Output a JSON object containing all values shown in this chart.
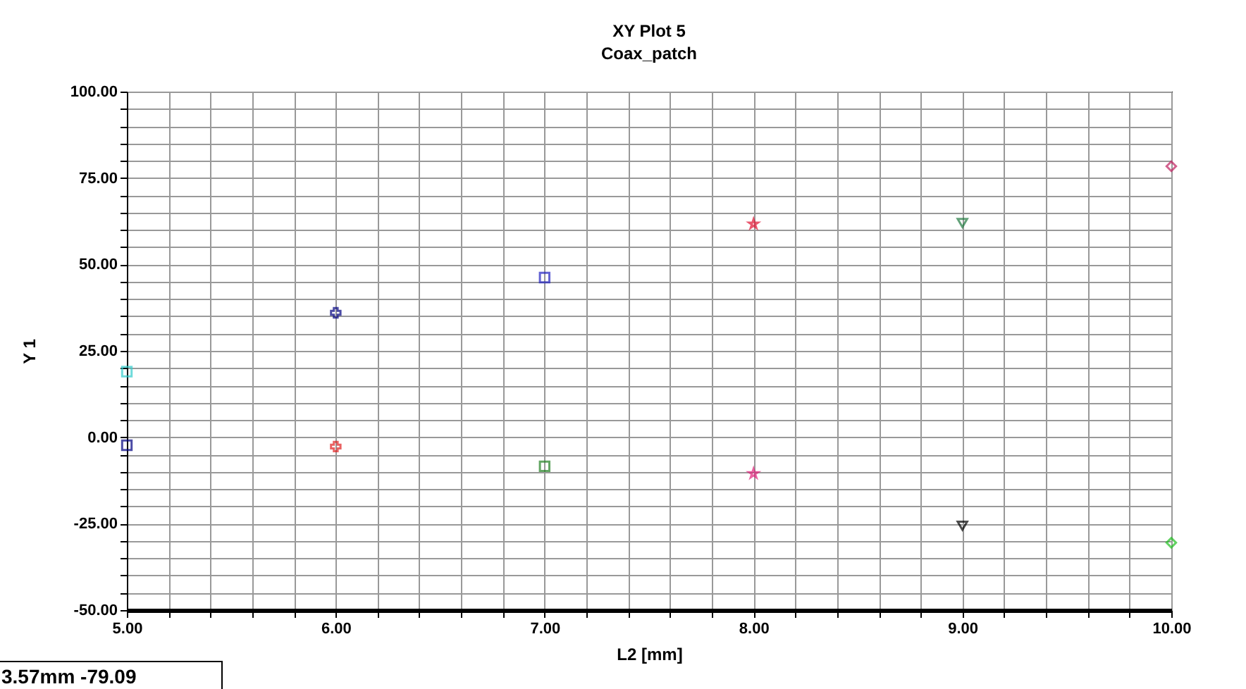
{
  "chart_data": {
    "type": "scatter",
    "title": "XY Plot 5",
    "subtitle": "Coax_patch",
    "xlabel": "L2 [mm]",
    "ylabel": "Y 1",
    "annotations": [
      "3.57mm -79.09"
    ],
    "xlim": [
      5,
      10
    ],
    "ylim": [
      -50,
      100
    ],
    "xticks": [
      {
        "value": 5,
        "label": "5.00"
      },
      {
        "value": 5.2,
        "label": null
      },
      {
        "value": 5.4,
        "label": null
      },
      {
        "value": 5.6,
        "label": null
      },
      {
        "value": 5.8,
        "label": null
      },
      {
        "value": 6,
        "label": "6.00"
      },
      {
        "value": 6.2,
        "label": null
      },
      {
        "value": 6.4,
        "label": null
      },
      {
        "value": 6.6,
        "label": null
      },
      {
        "value": 6.8,
        "label": null
      },
      {
        "value": 7,
        "label": "7.00"
      },
      {
        "value": 7.2,
        "label": null
      },
      {
        "value": 7.4,
        "label": null
      },
      {
        "value": 7.6,
        "label": null
      },
      {
        "value": 7.8,
        "label": null
      },
      {
        "value": 8,
        "label": "8.00"
      },
      {
        "value": 8.2,
        "label": null
      },
      {
        "value": 8.4,
        "label": null
      },
      {
        "value": 8.6,
        "label": null
      },
      {
        "value": 8.8,
        "label": null
      },
      {
        "value": 9,
        "label": "9.00"
      },
      {
        "value": 9.2,
        "label": null
      },
      {
        "value": 9.4,
        "label": null
      },
      {
        "value": 9.6,
        "label": null
      },
      {
        "value": 9.8,
        "label": null
      },
      {
        "value": 10,
        "label": "10.00"
      }
    ],
    "yticks": [
      {
        "value": -50,
        "label": "-50.00"
      },
      {
        "value": -45,
        "label": null
      },
      {
        "value": -40,
        "label": null
      },
      {
        "value": -35,
        "label": null
      },
      {
        "value": -30,
        "label": null
      },
      {
        "value": -25,
        "label": "-25.00"
      },
      {
        "value": -20,
        "label": null
      },
      {
        "value": -15,
        "label": null
      },
      {
        "value": -10,
        "label": null
      },
      {
        "value": -5,
        "label": null
      },
      {
        "value": 0,
        "label": "0.00"
      },
      {
        "value": 5,
        "label": null
      },
      {
        "value": 10,
        "label": null
      },
      {
        "value": 15,
        "label": null
      },
      {
        "value": 20,
        "label": null
      },
      {
        "value": 25,
        "label": "25.00"
      },
      {
        "value": 30,
        "label": null
      },
      {
        "value": 35,
        "label": null
      },
      {
        "value": 40,
        "label": null
      },
      {
        "value": 45,
        "label": null
      },
      {
        "value": 50,
        "label": "50.00"
      },
      {
        "value": 55,
        "label": null
      },
      {
        "value": 60,
        "label": null
      },
      {
        "value": 65,
        "label": null
      },
      {
        "value": 70,
        "label": null
      },
      {
        "value": 75,
        "label": "75.00"
      },
      {
        "value": 80,
        "label": null
      },
      {
        "value": 85,
        "label": null
      },
      {
        "value": 90,
        "label": null
      },
      {
        "value": 95,
        "label": null
      },
      {
        "value": 100,
        "label": "100.00"
      }
    ],
    "grid": true,
    "series": [
      {
        "color": "#33cccc",
        "marker": "square",
        "x": [
          5
        ],
        "values": [
          19
        ]
      },
      {
        "color": "#000080",
        "marker": "square",
        "x": [
          5
        ],
        "values": [
          -2.3
        ]
      },
      {
        "color": "#000080",
        "marker": "cross",
        "x": [
          6
        ],
        "values": [
          36
        ]
      },
      {
        "color": "#e02020",
        "marker": "cross",
        "x": [
          6
        ],
        "values": [
          -2.7
        ]
      },
      {
        "color": "#2020c0",
        "marker": "square",
        "x": [
          7
        ],
        "values": [
          46.2
        ]
      },
      {
        "color": "#208020",
        "marker": "square",
        "x": [
          7
        ],
        "values": [
          -8.4
        ]
      },
      {
        "color": "#e01030",
        "marker": "star",
        "x": [
          8
        ],
        "values": [
          61.7
        ]
      },
      {
        "color": "#e0207a",
        "marker": "star",
        "x": [
          8
        ],
        "values": [
          -10.5
        ]
      },
      {
        "color": "#207a40",
        "marker": "triangle",
        "x": [
          9
        ],
        "values": [
          62
        ]
      },
      {
        "color": "#000000",
        "marker": "triangle",
        "x": [
          9
        ],
        "values": [
          -25.6
        ]
      },
      {
        "color": "#c02060",
        "marker": "diamond",
        "x": [
          10
        ],
        "values": [
          78.4
        ]
      },
      {
        "color": "#20c020",
        "marker": "diamond",
        "x": [
          10
        ],
        "values": [
          -30.5
        ]
      }
    ]
  }
}
